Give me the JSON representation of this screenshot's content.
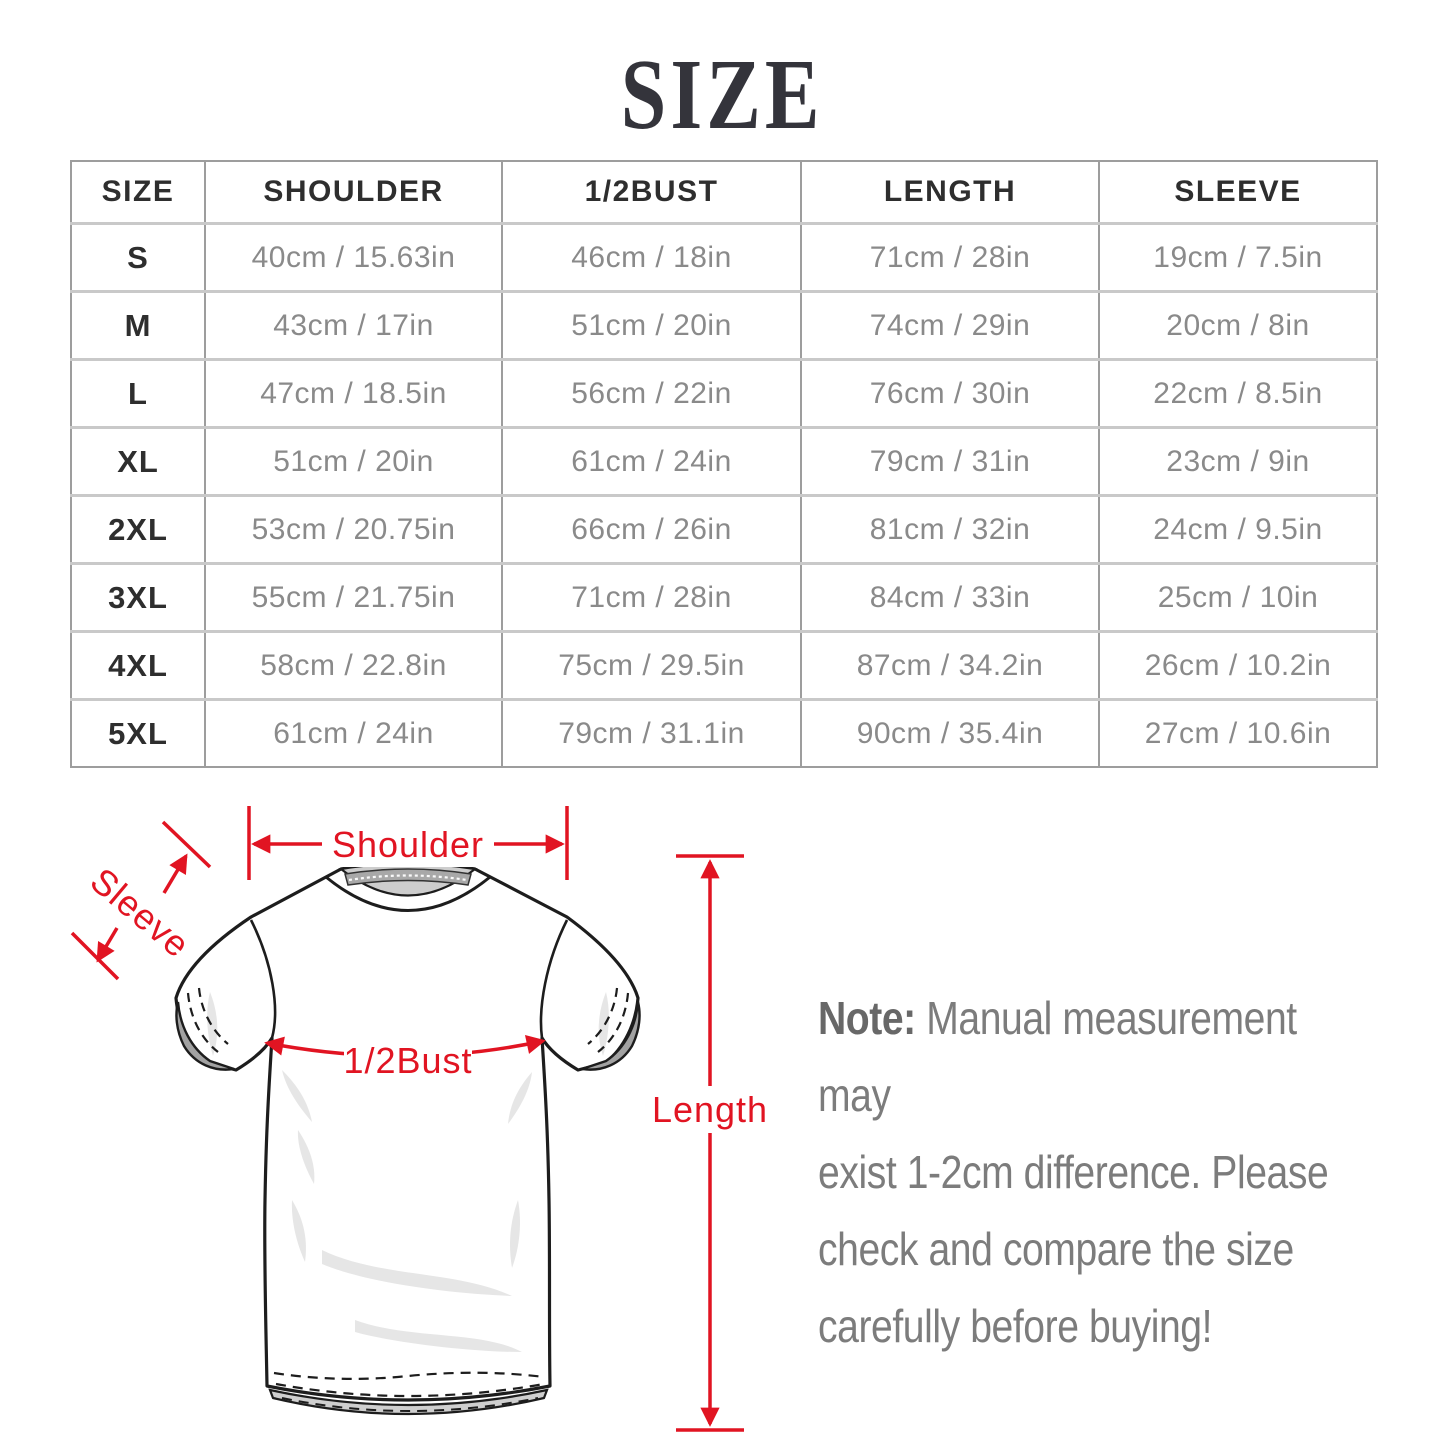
{
  "page": {
    "title": "SIZE"
  },
  "table": {
    "headers": [
      "SIZE",
      "SHOULDER",
      "1/2BUST",
      "LENGTH",
      "SLEEVE"
    ],
    "rows": [
      [
        "S",
        "40cm / 15.63in",
        "46cm / 18in",
        "71cm / 28in",
        "19cm / 7.5in"
      ],
      [
        "M",
        "43cm / 17in",
        "51cm / 20in",
        "74cm / 29in",
        "20cm / 8in"
      ],
      [
        "L",
        "47cm / 18.5in",
        "56cm / 22in",
        "76cm / 30in",
        "22cm / 8.5in"
      ],
      [
        "XL",
        "51cm / 20in",
        "61cm / 24in",
        "79cm / 31in",
        "23cm / 9in"
      ],
      [
        "2XL",
        "53cm / 20.75in",
        "66cm / 26in",
        "81cm / 32in",
        "24cm / 9.5in"
      ],
      [
        "3XL",
        "55cm / 21.75in",
        "71cm / 28in",
        "84cm / 33in",
        "25cm / 10in"
      ],
      [
        "4XL",
        "58cm / 22.8in",
        "75cm / 29.5in",
        "87cm / 34.2in",
        "26cm / 10.2in"
      ],
      [
        "5XL",
        "61cm / 24in",
        "79cm / 31.1in",
        "90cm / 35.4in",
        "27cm / 10.6in"
      ]
    ]
  },
  "diagram": {
    "labels": {
      "shoulder": "Shoulder",
      "sleeve": "Sleeve",
      "half_bust": "1/2Bust",
      "length": "Length"
    },
    "accent_color": "#e11422"
  },
  "note": {
    "prefix": "Note:",
    "line1": "Manual measurement may",
    "line2": "exist 1-2cm difference. Please",
    "line3": "check and compare the size",
    "line4": "carefully before buying!"
  },
  "chart_data": {
    "type": "table",
    "title": "SIZE",
    "columns": [
      "SIZE",
      "SHOULDER",
      "1/2BUST",
      "LENGTH",
      "SLEEVE"
    ],
    "rows": [
      [
        "S",
        "40cm / 15.63in",
        "46cm / 18in",
        "71cm / 28in",
        "19cm / 7.5in"
      ],
      [
        "M",
        "43cm / 17in",
        "51cm / 20in",
        "74cm / 29in",
        "20cm / 8in"
      ],
      [
        "L",
        "47cm / 18.5in",
        "56cm / 22in",
        "76cm / 30in",
        "22cm / 8.5in"
      ],
      [
        "XL",
        "51cm / 20in",
        "61cm / 24in",
        "79cm / 31in",
        "23cm / 9in"
      ],
      [
        "2XL",
        "53cm / 20.75in",
        "66cm / 26in",
        "81cm / 32in",
        "24cm / 9.5in"
      ],
      [
        "3XL",
        "55cm / 21.75in",
        "71cm / 28in",
        "84cm / 33in",
        "25cm / 10in"
      ],
      [
        "4XL",
        "58cm / 22.8in",
        "75cm / 29.5in",
        "87cm / 34.2in",
        "26cm / 10.2in"
      ],
      [
        "5XL",
        "61cm / 24in",
        "79cm / 31.1in",
        "90cm / 35.4in",
        "27cm / 10.6in"
      ]
    ]
  }
}
